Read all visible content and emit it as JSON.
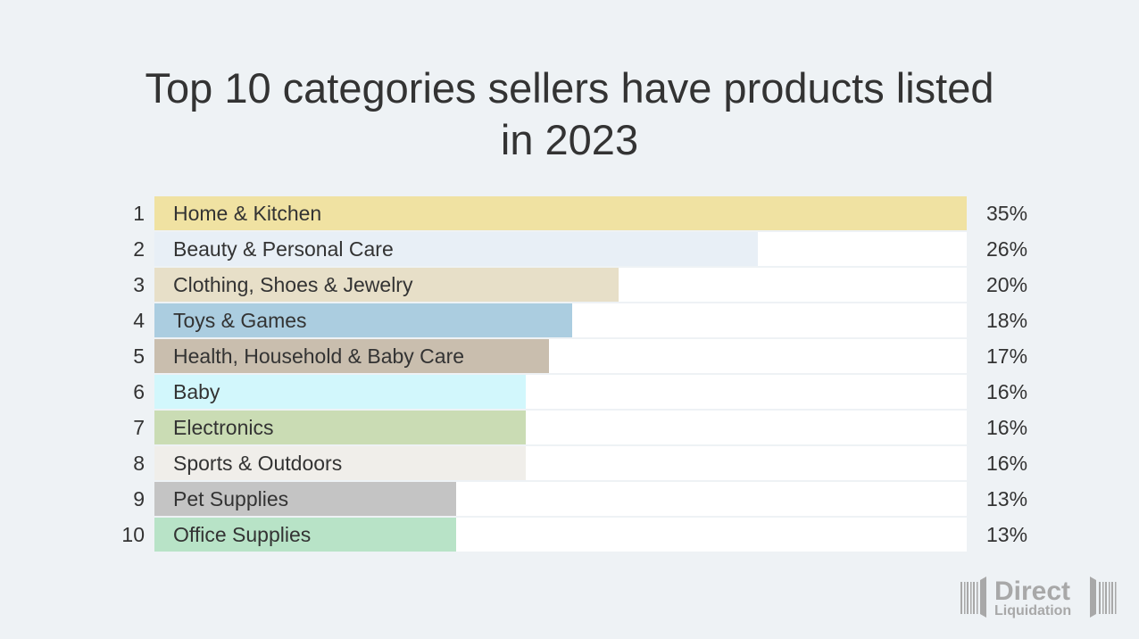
{
  "chart_data": {
    "type": "bar",
    "orientation": "horizontal",
    "title": "Top 10 categories sellers have products listed in 2023",
    "title_lines": [
      "Top 10 categories sellers have products listed",
      "in 2023"
    ],
    "xlabel": "",
    "ylabel": "",
    "xlim": [
      0,
      35
    ],
    "grid": false,
    "legend": "none",
    "ranks": [
      "1",
      "2",
      "3",
      "4",
      "5",
      "6",
      "7",
      "8",
      "9",
      "10"
    ],
    "categories": [
      "Home & Kitchen",
      "Beauty & Personal Care",
      "Clothing, Shoes & Jewelry",
      "Toys & Games",
      "Health, Household & Baby Care",
      "Baby",
      "Electronics",
      "Sports & Outdoors",
      "Pet Supplies",
      "Office Supplies"
    ],
    "values": [
      35,
      26,
      20,
      18,
      17,
      16,
      16,
      16,
      13,
      13
    ],
    "value_labels": [
      "35%",
      "26%",
      "20%",
      "18%",
      "17%",
      "16%",
      "16%",
      "16%",
      "13%",
      "13%"
    ],
    "colors": [
      "#f0e2a2",
      "#e8eff6",
      "#e7dfc8",
      "#abcde0",
      "#c9beae",
      "#d2f7fc",
      "#cadcb4",
      "#f0eeea",
      "#c4c4c4",
      "#b8e3c7"
    ]
  },
  "logo": {
    "line1": "Direct",
    "line2": "Liquidation",
    "color": "#a8a8a8"
  }
}
